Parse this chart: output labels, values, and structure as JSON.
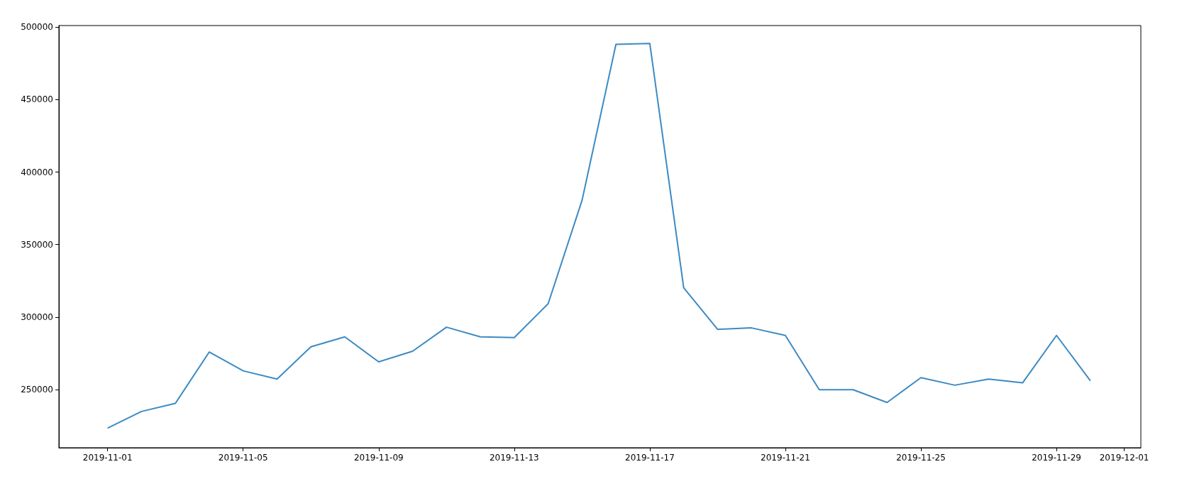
{
  "chart_data": {
    "type": "line",
    "x": [
      "2019-11-01",
      "2019-11-02",
      "2019-11-03",
      "2019-11-04",
      "2019-11-05",
      "2019-11-06",
      "2019-11-07",
      "2019-11-08",
      "2019-11-09",
      "2019-11-10",
      "2019-11-11",
      "2019-11-12",
      "2019-11-13",
      "2019-11-14",
      "2019-11-15",
      "2019-11-16",
      "2019-11-17",
      "2019-11-18",
      "2019-11-19",
      "2019-11-20",
      "2019-11-21",
      "2019-11-22",
      "2019-11-23",
      "2019-11-24",
      "2019-11-25",
      "2019-11-26",
      "2019-11-27",
      "2019-11-28",
      "2019-11-29",
      "2019-11-30"
    ],
    "series": [
      {
        "color": "#3c8ac4",
        "values": [
          223500,
          235000,
          240600,
          276000,
          263000,
          257300,
          279600,
          286400,
          269200,
          276500,
          293100,
          286400,
          285900,
          309300,
          380500,
          488000,
          488600,
          320200,
          291600,
          292600,
          287400,
          250000,
          250000,
          241200,
          258300,
          253100,
          257300,
          254700,
          287400,
          256200
        ]
      }
    ],
    "xlim": [
      "2019-10-30T13:30",
      "2019-12-01T11:45"
    ],
    "xticks": [
      "2019-11-01",
      "2019-11-05",
      "2019-11-09",
      "2019-11-13",
      "2019-11-17",
      "2019-11-21",
      "2019-11-25",
      "2019-11-29",
      "2019-12-01"
    ],
    "ylim": [
      210000,
      501000
    ],
    "yticks": [
      250000,
      300000,
      350000,
      400000,
      450000,
      500000
    ]
  }
}
